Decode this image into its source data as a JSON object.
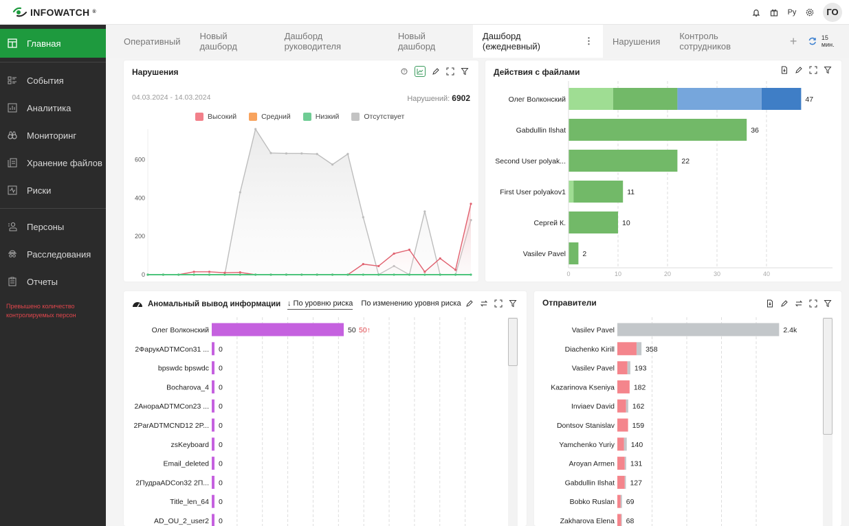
{
  "app": {
    "logo_text": "INFOWATCH",
    "logo_mark": "®"
  },
  "topbar": {
    "icons": [
      "bell-icon",
      "gift-icon",
      "language-icon",
      "gear-icon"
    ],
    "language_label": "Ру",
    "user_initials": "ГО"
  },
  "sidebar": {
    "items": [
      {
        "label": "Главная",
        "icon": "dashboard-icon",
        "active": true
      },
      {
        "label": "События",
        "icon": "events-icon"
      },
      {
        "label": "Аналитика",
        "icon": "analytics-icon"
      },
      {
        "label": "Мониторинг",
        "icon": "binoculars-icon"
      },
      {
        "label": "Хранение файлов",
        "icon": "file-storage-icon"
      },
      {
        "label": "Риски",
        "icon": "risk-icon"
      },
      {
        "label": "Персоны",
        "icon": "persons-icon"
      },
      {
        "label": "Расследования",
        "icon": "investigation-icon"
      },
      {
        "label": "Отчеты",
        "icon": "report-icon"
      }
    ],
    "warning": "Превышено количество контролируемых персон"
  },
  "tabs": {
    "items": [
      "Оперативный",
      "Новый дашборд",
      "Дашборд руководителя",
      "Новый дашборд",
      "Дашборд (ежедневный)",
      "Нарушения",
      "Контроль сотрудников"
    ],
    "active_index": 4,
    "add_label": "+",
    "refresh_label": "15 мин."
  },
  "widgets": {
    "violations": {
      "title": "Нарушения",
      "date_range": "04.03.2024 - 14.03.2024",
      "total_label": "Нарушений:",
      "total_value": "6902"
    },
    "file_actions": {
      "title": "Действия с файлами"
    },
    "anomaly": {
      "title": "Аномальный вывод информации",
      "sort_by_risk": "↓ По уровню риска",
      "sort_by_change": "По изменению уровня риска"
    },
    "senders": {
      "title": "Отправители"
    }
  },
  "chart_data": [
    {
      "id": "violations",
      "type": "area",
      "title": "Нарушения",
      "ylim": [
        0,
        760
      ],
      "yticks": [
        0,
        200,
        400,
        600
      ],
      "x_count": 22,
      "legend": [
        {
          "name": "Высокий",
          "color": "#f2808a"
        },
        {
          "name": "Средний",
          "color": "#f8a35e"
        },
        {
          "name": "Низкий",
          "color": "#6fcc94"
        },
        {
          "name": "Отсутствует",
          "color": "#c3c3c3"
        }
      ],
      "legend_placement": "top",
      "series": [
        {
          "name": "Отсутствует",
          "color": "#bdbdbd",
          "values": [
            0,
            0,
            0,
            0,
            0,
            0,
            430,
            760,
            635,
            633,
            633,
            630,
            575,
            630,
            300,
            0,
            45,
            0,
            330,
            0,
            0,
            285
          ]
        },
        {
          "name": "Высокий",
          "color": "#e0606e",
          "values": [
            0,
            0,
            0,
            15,
            15,
            10,
            12,
            0,
            0,
            0,
            0,
            0,
            0,
            0,
            55,
            45,
            110,
            130,
            15,
            85,
            25,
            370
          ]
        },
        {
          "name": "Средний",
          "color": "#f8a35e",
          "values": [
            0,
            0,
            0,
            0,
            0,
            0,
            0,
            0,
            0,
            0,
            0,
            0,
            0,
            0,
            0,
            0,
            0,
            0,
            0,
            0,
            0,
            0
          ]
        },
        {
          "name": "Низкий",
          "color": "#4cc47c",
          "values": [
            0,
            0,
            0,
            0,
            0,
            0,
            0,
            0,
            0,
            0,
            0,
            0,
            0,
            0,
            0,
            0,
            0,
            0,
            0,
            0,
            0,
            0
          ]
        }
      ]
    },
    {
      "id": "file_actions",
      "type": "bar",
      "orientation": "horizontal",
      "stacked": true,
      "title": "Действия с файлами",
      "xlim": [
        0,
        50
      ],
      "xticks": [
        0,
        10,
        20,
        30,
        40
      ],
      "categories": [
        "Олег Волконский",
        "Gabdullin Ilshat",
        "Second User polyak...",
        "First User polyakov1",
        "Сергей К.",
        "Vasilev Pavel"
      ],
      "totals": [
        47,
        36,
        22,
        11,
        10,
        2
      ],
      "series": [
        {
          "name": "segment-1",
          "color": "#9fdd93",
          "values": [
            9,
            0,
            0,
            1,
            0,
            0
          ]
        },
        {
          "name": "segment-2",
          "color": "#72b968",
          "values": [
            13,
            36,
            22,
            10,
            10,
            2
          ]
        },
        {
          "name": "segment-3",
          "color": "#76a6dc",
          "values": [
            17,
            0,
            0,
            0,
            0,
            0
          ]
        },
        {
          "name": "segment-4",
          "color": "#3f7ec6",
          "values": [
            8,
            0,
            0,
            0,
            0,
            0
          ]
        }
      ]
    },
    {
      "id": "anomaly",
      "type": "bar",
      "orientation": "horizontal",
      "title": "Аномальный вывод информации",
      "xlim": [
        0,
        100
      ],
      "categories": [
        "Олег Волконский",
        "2ФарукADTMCon31 ...",
        "bpswdc bpswdc",
        "Bocharova_4",
        "2АнораADTMCon23 ...",
        "2ParADTMCND12 2P...",
        "zsKeyboard",
        "Email_deleted",
        "2ПудраADCon32 2П...",
        "Title_len_64",
        "AD_OU_2_user2"
      ],
      "values": [
        50,
        0,
        0,
        0,
        0,
        0,
        0,
        0,
        0,
        0,
        0
      ],
      "change": [
        "50↑",
        "",
        "",
        "",
        "",
        "",
        "",
        "",
        "",
        "",
        ""
      ],
      "color": "#c561df"
    },
    {
      "id": "senders",
      "type": "bar",
      "orientation": "horizontal",
      "stacked": true,
      "title": "Отправители",
      "xlim": [
        0,
        2500
      ],
      "categories": [
        "Vasilev Pavel",
        "Diachenko Kirill",
        "Vasilev Pavel",
        "Kazarinova Kseniya",
        "Inviaev David",
        "Dontsov Stanislav",
        "Yamchenko Yuriy",
        "Aroyan Armen",
        "Gabdullin Ilshat",
        "Bobko Ruslan",
        "Zakharova Elena"
      ],
      "labels": [
        "2.4k",
        "358",
        "193",
        "182",
        "162",
        "159",
        "140",
        "131",
        "127",
        "69",
        "68"
      ],
      "series": [
        {
          "name": "high",
          "color": "#f4858c",
          "values": [
            0,
            285,
            150,
            182,
            130,
            159,
            100,
            110,
            110,
            50,
            58
          ]
        },
        {
          "name": "none",
          "color": "#c3c7ca",
          "values": [
            2400,
            73,
            43,
            0,
            32,
            0,
            40,
            21,
            17,
            19,
            10
          ]
        }
      ]
    }
  ]
}
